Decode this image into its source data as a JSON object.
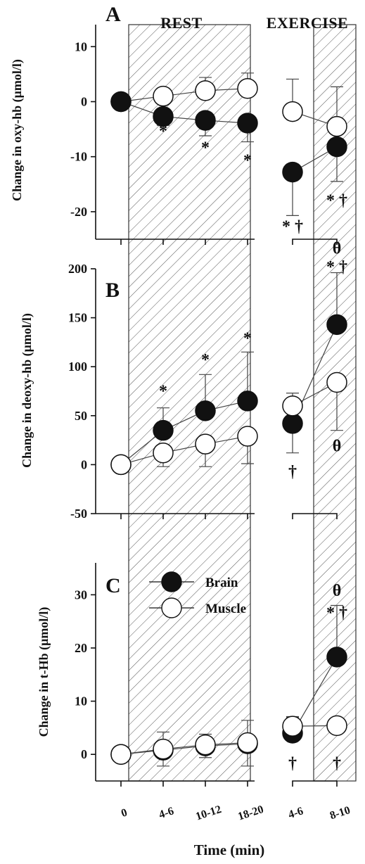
{
  "chart_data": {
    "type": "line",
    "shared": {
      "phases": [
        "REST",
        "EXERCISE"
      ],
      "x_ticks": [
        "0",
        "4-6",
        "10-12",
        "18-20",
        "4-6",
        "8-10"
      ],
      "x_label": "Time (min)",
      "legend": [
        {
          "name": "Brain",
          "marker": "filled"
        },
        {
          "name": "Muscle",
          "marker": "open"
        }
      ],
      "colors": {
        "brain_fill": "#111111",
        "muscle_fill": "#ffffff",
        "error_bar": "#444444"
      }
    },
    "panels": [
      {
        "letter": "A",
        "ylabel": "Change in oxy-hb (μmol/l)",
        "ylim": [
          -25,
          14
        ],
        "y_ticks": [
          "10",
          "0",
          "-10",
          "-20"
        ],
        "series": [
          {
            "name": "Brain",
            "values": [
              0,
              -2.7,
              -3.4,
              -3.9,
              -12.8,
              -8.2
            ],
            "errors": [
              0,
              1.6,
              2.8,
              3.4,
              7.9,
              6.3
            ],
            "err_dir": "down"
          },
          {
            "name": "Muscle",
            "values": [
              0,
              1.0,
              2.0,
              2.4,
              -1.8,
              -4.5
            ],
            "errors": [
              0,
              0,
              2.4,
              2.8,
              5.9,
              7.2
            ],
            "err_dir": "up"
          }
        ],
        "annotations": [
          {
            "text": "*",
            "x": 1,
            "y": -5.2
          },
          {
            "text": "*",
            "x": 2,
            "y": -8.2
          },
          {
            "text": "*",
            "x": 3,
            "y": -10.5
          },
          {
            "text": "* †",
            "x": 4,
            "y": -22.5
          },
          {
            "text": "* †",
            "x": 5,
            "y": -17.8
          }
        ]
      },
      {
        "letter": "B",
        "ylabel": "Change in deoxy-hb (μmol/l)",
        "ylim": [
          -50,
          200
        ],
        "y_ticks": [
          "200",
          "150",
          "100",
          "50",
          "0",
          "-50"
        ],
        "series": [
          {
            "name": "Brain",
            "values": [
              0,
              35,
              55,
              65,
              42,
              143
            ],
            "errors": [
              0,
              23,
              37,
              50,
              30,
              53
            ],
            "err_dir": "up",
            "err_dir_by_point": [
              "up",
              "up",
              "up",
              "up",
              "down",
              "up"
            ]
          },
          {
            "name": "Muscle",
            "values": [
              0,
              12,
              21,
              29,
              60,
              84
            ],
            "errors": [
              0,
              14,
              23,
              28,
              13,
              49
            ],
            "err_dir": "down",
            "err_dir_by_point": [
              "down",
              "down",
              "down",
              "down",
              "up",
              "down"
            ]
          }
        ],
        "annotations": [
          {
            "text": "*",
            "x": 1,
            "y": 76
          },
          {
            "text": "*",
            "x": 2,
            "y": 108
          },
          {
            "text": "*",
            "x": 3,
            "y": 130
          },
          {
            "text": "†",
            "x": 4,
            "y": -6
          },
          {
            "text": "θ",
            "x": 5,
            "y": 222
          },
          {
            "text": "* †",
            "x": 5,
            "y": 203
          },
          {
            "text": "θ",
            "x": 5,
            "y": 20
          }
        ]
      },
      {
        "letter": "C",
        "ylabel": "Change in t-Hb (μmol/l)",
        "ylim": [
          -5,
          36
        ],
        "y_ticks": [
          "30",
          "20",
          "10",
          "0"
        ],
        "series": [
          {
            "name": "Brain",
            "values": [
              0,
              0.8,
              1.6,
              2.0,
              4.0,
              18.3
            ],
            "errors": [
              0,
              3.0,
              2.2,
              4.2,
              3.0,
              9.7
            ],
            "err_dir": "down",
            "err_dir_by_point": [
              "down",
              "down",
              "down",
              "down",
              "up",
              "up"
            ]
          },
          {
            "name": "Muscle",
            "values": [
              0,
              1.0,
              1.8,
              2.2,
              5.3,
              5.4
            ],
            "errors": [
              0,
              3.2,
              2.0,
              4.2,
              1.8,
              0
            ],
            "err_dir": "up"
          }
        ],
        "annotations": [
          {
            "text": "θ",
            "x": 5,
            "y": 31
          },
          {
            "text": "* †",
            "x": 5,
            "y": 26.8
          },
          {
            "text": "†",
            "x": 4,
            "y": -1.5
          },
          {
            "text": "†",
            "x": 5,
            "y": -1.5
          }
        ]
      }
    ]
  }
}
